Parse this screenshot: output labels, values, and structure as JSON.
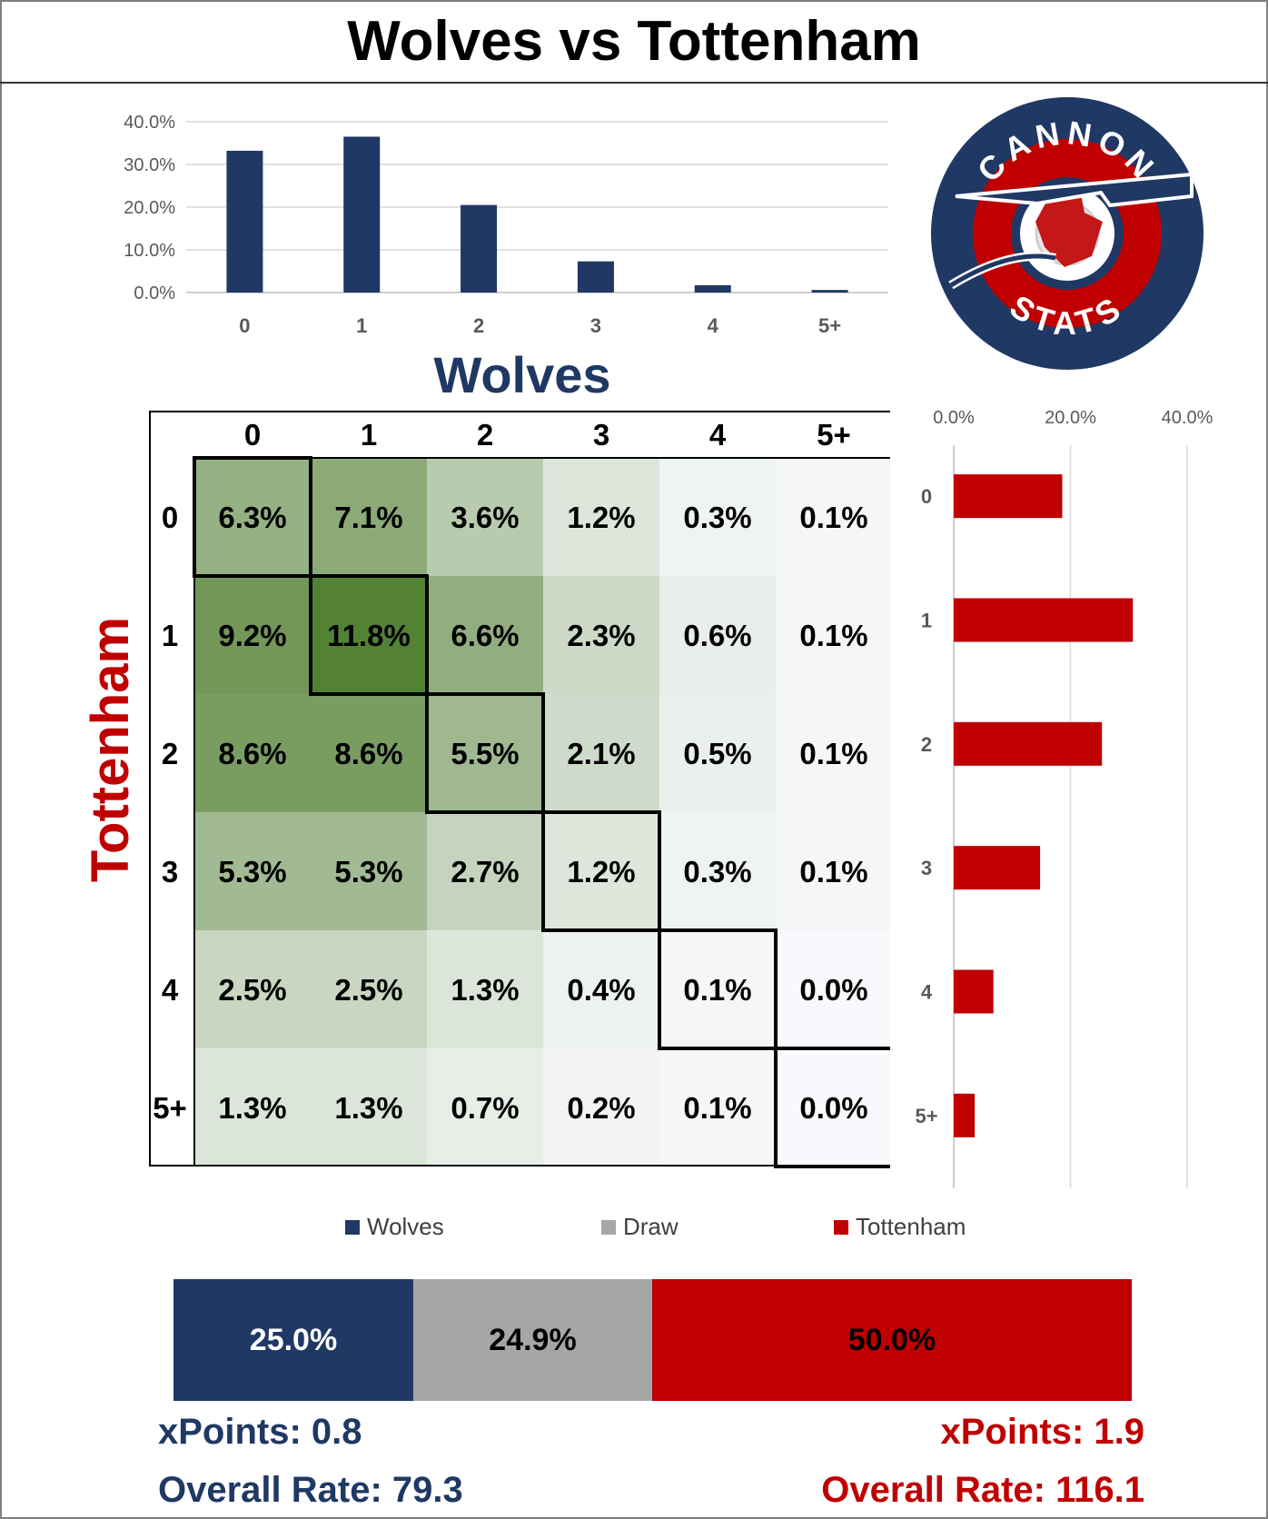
{
  "title": "Wolves vs Tottenham",
  "home_team": "Wolves",
  "away_team": "Tottenham",
  "colors": {
    "home": "#1f3864",
    "draw": "#a6a6a6",
    "away": "#c00000"
  },
  "logo": {
    "top_text": "CANNON",
    "bottom_text": "STATS"
  },
  "chart_data": [
    {
      "type": "bar",
      "name": "home-goals-distribution",
      "categories": [
        "0",
        "1",
        "2",
        "3",
        "4",
        "5+"
      ],
      "values": [
        33.2,
        36.5,
        20.5,
        7.3,
        1.7,
        0.6
      ],
      "yticks": [
        "0.0%",
        "10.0%",
        "20.0%",
        "30.0%",
        "40.0%"
      ],
      "ylim": [
        0,
        40
      ],
      "xlabel": "Wolves"
    },
    {
      "type": "bar",
      "orientation": "horizontal",
      "name": "away-goals-distribution",
      "categories": [
        "0",
        "1",
        "2",
        "3",
        "4",
        "5+"
      ],
      "values": [
        18.6,
        30.7,
        25.4,
        14.8,
        6.8,
        3.6
      ],
      "xticks": [
        "0.0%",
        "20.0%",
        "40.0%"
      ],
      "xlim": [
        0,
        40
      ],
      "ylabel": "Tottenham"
    },
    {
      "type": "heatmap",
      "name": "scoreline-probability-matrix",
      "columns": [
        "0",
        "1",
        "2",
        "3",
        "4",
        "5+"
      ],
      "rows": [
        "0",
        "1",
        "2",
        "3",
        "4",
        "5+"
      ],
      "values": [
        [
          6.3,
          7.1,
          3.6,
          1.2,
          0.3,
          0.1
        ],
        [
          9.2,
          11.8,
          6.6,
          2.3,
          0.6,
          0.1
        ],
        [
          8.6,
          8.6,
          5.5,
          2.1,
          0.5,
          0.1
        ],
        [
          5.3,
          5.3,
          2.7,
          1.2,
          0.3,
          0.1
        ],
        [
          2.5,
          2.5,
          1.3,
          0.4,
          0.1,
          0.0
        ],
        [
          1.3,
          1.3,
          0.7,
          0.2,
          0.1,
          0.0
        ]
      ],
      "labels": [
        [
          "6.3%",
          "7.1%",
          "3.6%",
          "1.2%",
          "0.3%",
          "0.1%"
        ],
        [
          "9.2%",
          "11.8%",
          "6.6%",
          "2.3%",
          "0.6%",
          "0.1%"
        ],
        [
          "8.6%",
          "8.6%",
          "5.5%",
          "2.1%",
          "0.5%",
          "0.1%"
        ],
        [
          "5.3%",
          "5.3%",
          "2.7%",
          "1.2%",
          "0.3%",
          "0.1%"
        ],
        [
          "2.5%",
          "2.5%",
          "1.3%",
          "0.4%",
          "0.1%",
          "0.0%"
        ],
        [
          "1.3%",
          "1.3%",
          "0.7%",
          "0.2%",
          "0.1%",
          "0.0%"
        ]
      ],
      "xlabel": "Wolves",
      "ylabel": "Tottenham"
    },
    {
      "type": "bar",
      "stacked": true,
      "name": "result-probability",
      "series": [
        {
          "name": "Wolves",
          "value": 25.0,
          "label": "25.0%"
        },
        {
          "name": "Draw",
          "value": 24.9,
          "label": "24.9%"
        },
        {
          "name": "Tottenham",
          "value": 50.0,
          "label": "50.0%"
        }
      ]
    }
  ],
  "stats": {
    "home_xpoints": "xPoints: 0.8",
    "home_rate": "Overall Rate: 79.3",
    "away_xpoints": "xPoints: 1.9",
    "away_rate": "Overall Rate: 116.1"
  }
}
